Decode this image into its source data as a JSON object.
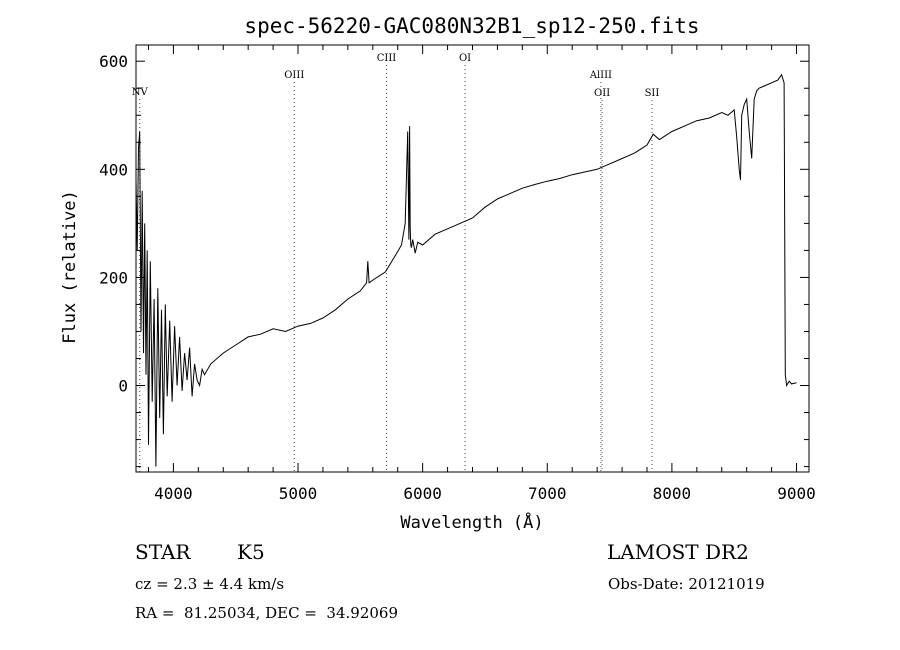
{
  "chart_data": {
    "type": "line",
    "title": "spec-56220-GAC080N32B1_sp12-250.fits",
    "xlabel": "Wavelength (Å)",
    "ylabel": "Flux (relative)",
    "xlim": [
      3700,
      9100
    ],
    "ylim": [
      -160,
      630
    ],
    "xticks": [
      4000,
      5000,
      6000,
      7000,
      8000,
      9000
    ],
    "yticks": [
      0,
      200,
      400,
      600
    ],
    "grid": false,
    "series": [
      {
        "x": [
          3700,
          3710,
          3720,
          3730,
          3740,
          3750,
          3760,
          3770,
          3780,
          3790,
          3800,
          3815,
          3830,
          3845,
          3860,
          3875,
          3890,
          3905,
          3920,
          3935,
          3950,
          3970,
          3990,
          4010,
          4030,
          4050,
          4070,
          4090,
          4110,
          4130,
          4150,
          4170,
          4190,
          4210,
          4230,
          4250,
          4300,
          4400,
          4500,
          4600,
          4700,
          4800,
          4900,
          5000,
          5100,
          5200,
          5300,
          5400,
          5500,
          5550,
          5560,
          5570,
          5600,
          5700,
          5780,
          5830,
          5860,
          5880,
          5890,
          5895,
          5900,
          5905,
          5910,
          5920,
          5940,
          5960,
          6000,
          6100,
          6200,
          6300,
          6400,
          6500,
          6600,
          6700,
          6800,
          6900,
          7000,
          7100,
          7200,
          7300,
          7400,
          7450,
          7500,
          7600,
          7700,
          7800,
          7850,
          7900,
          8000,
          8100,
          8200,
          8300,
          8400,
          8450,
          8500,
          8520,
          8540,
          8550,
          8560,
          8580,
          8600,
          8620,
          8640,
          8660,
          8680,
          8700,
          8750,
          8800,
          8850,
          8880,
          8900,
          8910,
          8920,
          8940,
          8960,
          9000
        ],
        "values": [
          380,
          250,
          440,
          470,
          100,
          360,
          60,
          300,
          20,
          250,
          -110,
          230,
          -30,
          160,
          -150,
          180,
          -60,
          140,
          -90,
          150,
          -20,
          120,
          -30,
          110,
          0,
          90,
          -10,
          60,
          10,
          70,
          -20,
          40,
          10,
          0,
          30,
          20,
          40,
          60,
          75,
          90,
          95,
          105,
          100,
          110,
          115,
          125,
          140,
          160,
          175,
          190,
          230,
          190,
          195,
          210,
          240,
          260,
          300,
          470,
          270,
          480,
          290,
          260,
          255,
          270,
          245,
          265,
          260,
          280,
          290,
          300,
          310,
          330,
          345,
          355,
          365,
          372,
          378,
          383,
          390,
          395,
          400,
          405,
          410,
          420,
          430,
          445,
          465,
          455,
          470,
          480,
          490,
          495,
          505,
          500,
          510,
          460,
          400,
          380,
          500,
          520,
          530,
          470,
          420,
          530,
          545,
          550,
          555,
          560,
          565,
          575,
          560,
          20,
          0,
          8,
          3,
          5
        ]
      }
    ],
    "line_markers": [
      {
        "label": "NV",
        "x": 3730
      },
      {
        "label": "OIII",
        "x": 4970
      },
      {
        "label": "CIII",
        "x": 5710
      },
      {
        "label": "OI",
        "x": 6340
      },
      {
        "label": "AlIII",
        "x": 7430
      },
      {
        "label": "OII",
        "x": 7440
      },
      {
        "label": "SII",
        "x": 7840
      }
    ]
  },
  "info": {
    "object_class": "STAR",
    "subclass": "K5",
    "survey": "LAMOST DR2",
    "cz": "cz = 2.3 ± 4.4 km/s",
    "obs_date": "Obs-Date: 20121019",
    "coords": "RA =  81.25034, DEC =  34.92069"
  }
}
